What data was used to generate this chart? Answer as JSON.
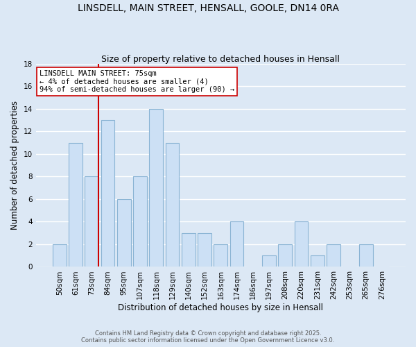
{
  "title1": "LINSDELL, MAIN STREET, HENSALL, GOOLE, DN14 0RA",
  "title2": "Size of property relative to detached houses in Hensall",
  "xlabel": "Distribution of detached houses by size in Hensall",
  "ylabel": "Number of detached properties",
  "bar_labels": [
    "50sqm",
    "61sqm",
    "73sqm",
    "84sqm",
    "95sqm",
    "107sqm",
    "118sqm",
    "129sqm",
    "140sqm",
    "152sqm",
    "163sqm",
    "174sqm",
    "186sqm",
    "197sqm",
    "208sqm",
    "220sqm",
    "231sqm",
    "242sqm",
    "253sqm",
    "265sqm",
    "276sqm"
  ],
  "bar_values": [
    2,
    11,
    8,
    13,
    6,
    8,
    14,
    11,
    3,
    3,
    2,
    4,
    0,
    1,
    2,
    4,
    1,
    2,
    0,
    2,
    0
  ],
  "bar_color": "#cce0f5",
  "bar_edge_color": "#8ab4d4",
  "background_color": "#dce8f5",
  "grid_color": "#ffffff",
  "vline_index": 2,
  "vline_color": "#cc0000",
  "annotation_line1": "LINSDELL MAIN STREET: 75sqm",
  "annotation_line2": "← 4% of detached houses are smaller (4)",
  "annotation_line3": "94% of semi-detached houses are larger (90) →",
  "annotation_box_color": "#ffffff",
  "annotation_box_edge": "#cc0000",
  "ylim": [
    0,
    18
  ],
  "yticks": [
    0,
    2,
    4,
    6,
    8,
    10,
    12,
    14,
    16,
    18
  ],
  "footnote": "Contains HM Land Registry data © Crown copyright and database right 2025.\nContains public sector information licensed under the Open Government Licence v3.0.",
  "title_fontsize": 10,
  "subtitle_fontsize": 9,
  "label_fontsize": 8.5,
  "tick_fontsize": 7.5,
  "annotation_fontsize": 7.5,
  "footnote_fontsize": 6.0
}
